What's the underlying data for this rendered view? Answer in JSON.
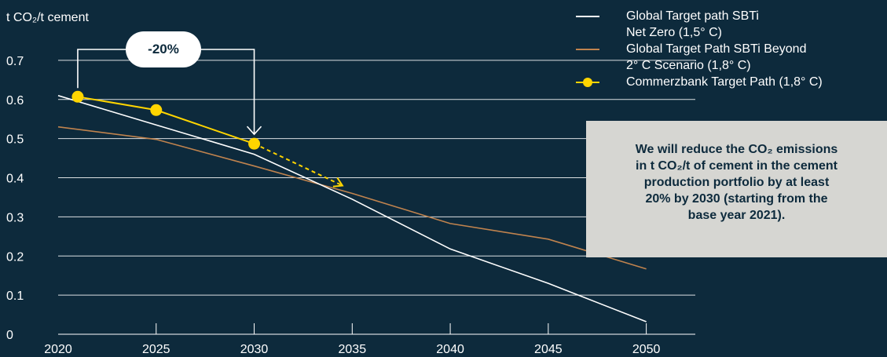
{
  "chart_data": {
    "type": "line",
    "ylabel": "t CO₂/t cement",
    "xlim": [
      2020,
      2052.5
    ],
    "ylim": [
      0,
      0.75
    ],
    "x_ticks": [
      "2020",
      "2025",
      "2030",
      "2035",
      "2040",
      "2045",
      "2050"
    ],
    "y_ticks": [
      "0",
      "0.1",
      "0.2",
      "0.3",
      "0.4",
      "0.5",
      "0.6",
      "0.7"
    ],
    "grid": "horizontal",
    "legend_position": "top-right",
    "series": [
      {
        "name": "Global Target path SBTi\nNet Zero (1,5° C)",
        "color": "#ffffff",
        "x": [
          2020,
          2025,
          2030,
          2035,
          2040,
          2045,
          2050
        ],
        "y": [
          0.61,
          0.535,
          0.46,
          0.345,
          0.218,
          0.13,
          0.032
        ]
      },
      {
        "name": "Global Target Path SBTi Beyond\n2° C Scenario (1,8° C)",
        "color": "#c0834e",
        "x": [
          2020,
          2025,
          2030,
          2035,
          2040,
          2045,
          2050
        ],
        "y": [
          0.53,
          0.498,
          0.43,
          0.36,
          0.283,
          0.243,
          0.167
        ]
      },
      {
        "name": "Commerzbank Target Path (1,8° C)",
        "color": "#ffd500",
        "markers": true,
        "x": [
          2021,
          2025,
          2030
        ],
        "y": [
          0.607,
          0.573,
          0.487
        ],
        "projection": {
          "x": [
            2030,
            2034.5
          ],
          "y": [
            0.487,
            0.38
          ],
          "style": "dashed-arrow"
        }
      }
    ],
    "annotations": {
      "reduction_badge": "-20%",
      "reduction_from_year": 2021,
      "reduction_to_year": 2030,
      "callout_lines": [
        "We will reduce the CO₂ emissions",
        "in t CO₂/t of cement in the cement",
        "production portfolio by at least",
        "20% by 2030 (starting from the",
        "base year 2021)."
      ]
    }
  },
  "colors": {
    "background": "#0d2a3c",
    "grid": "#ffffff",
    "callout_bg": "#d6d6d2",
    "marker": "#ffd500"
  }
}
